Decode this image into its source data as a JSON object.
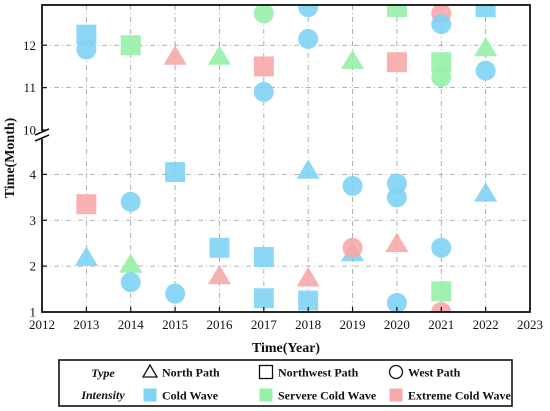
{
  "chart_data": {
    "type": "scatter",
    "title": "",
    "xlabel": "Time(Year)",
    "ylabel": "Time(Month)",
    "x_range": [
      2012,
      2023
    ],
    "x_ticks": [
      "2012",
      "2013",
      "2014",
      "2015",
      "2016",
      "2017",
      "2018",
      "2019",
      "2020",
      "2021",
      "2022",
      "2023"
    ],
    "y_lower_range": [
      1,
      4.75
    ],
    "y_upper_range": [
      10,
      12.95
    ],
    "y_ticks_lower": [
      "1",
      "2",
      "3",
      "4"
    ],
    "y_ticks_upper": [
      "10",
      "11",
      "12"
    ],
    "axis_break": "between 4.75 and 10",
    "grid": true,
    "legend": {
      "placement": "bottom",
      "type_header": "Type",
      "intensity_header": "Intensity",
      "types": [
        {
          "key": "triangle",
          "label": "North Path"
        },
        {
          "key": "square",
          "label": "Northwest Path"
        },
        {
          "key": "circle",
          "label": "West Path"
        }
      ],
      "intensities": [
        {
          "key": "cold",
          "label": "Cold Wave",
          "color": "#7fd3f4"
        },
        {
          "key": "severe",
          "label": "Servere Cold Wave",
          "color": "#97f0a8"
        },
        {
          "key": "extreme",
          "label": "Extreme Cold Wave",
          "color": "#f7a9a9"
        }
      ]
    },
    "points": [
      {
        "x": 2013,
        "y": 12.25,
        "type": "square",
        "intensity": "cold"
      },
      {
        "x": 2013,
        "y": 11.9,
        "type": "circle",
        "intensity": "cold"
      },
      {
        "x": 2013,
        "y": 3.35,
        "type": "square",
        "intensity": "extreme"
      },
      {
        "x": 2013,
        "y": 2.2,
        "type": "triangle",
        "intensity": "cold"
      },
      {
        "x": 2014,
        "y": 12.0,
        "type": "square",
        "intensity": "severe"
      },
      {
        "x": 2014,
        "y": 3.4,
        "type": "circle",
        "intensity": "cold"
      },
      {
        "x": 2014,
        "y": 2.05,
        "type": "triangle",
        "intensity": "severe"
      },
      {
        "x": 2014,
        "y": 1.65,
        "type": "circle",
        "intensity": "cold"
      },
      {
        "x": 2015,
        "y": 11.75,
        "type": "triangle",
        "intensity": "extreme"
      },
      {
        "x": 2015,
        "y": 4.05,
        "type": "square",
        "intensity": "cold"
      },
      {
        "x": 2015,
        "y": 1.4,
        "type": "circle",
        "intensity": "cold"
      },
      {
        "x": 2016,
        "y": 11.75,
        "type": "triangle",
        "intensity": "severe"
      },
      {
        "x": 2016,
        "y": 2.4,
        "type": "square",
        "intensity": "cold"
      },
      {
        "x": 2016,
        "y": 1.8,
        "type": "triangle",
        "intensity": "extreme"
      },
      {
        "x": 2017,
        "y": 12.75,
        "type": "circle",
        "intensity": "severe"
      },
      {
        "x": 2017,
        "y": 11.5,
        "type": "square",
        "intensity": "extreme"
      },
      {
        "x": 2017,
        "y": 10.9,
        "type": "circle",
        "intensity": "cold"
      },
      {
        "x": 2017,
        "y": 2.2,
        "type": "square",
        "intensity": "cold"
      },
      {
        "x": 2017,
        "y": 1.3,
        "type": "square",
        "intensity": "cold"
      },
      {
        "x": 2018,
        "y": 12.9,
        "type": "circle",
        "intensity": "cold"
      },
      {
        "x": 2018,
        "y": 12.15,
        "type": "circle",
        "intensity": "cold"
      },
      {
        "x": 2018,
        "y": 4.1,
        "type": "triangle",
        "intensity": "cold"
      },
      {
        "x": 2018,
        "y": 1.75,
        "type": "triangle",
        "intensity": "extreme"
      },
      {
        "x": 2018,
        "y": 1.25,
        "type": "square",
        "intensity": "cold"
      },
      {
        "x": 2019,
        "y": 11.65,
        "type": "triangle",
        "intensity": "severe"
      },
      {
        "x": 2019,
        "y": 3.75,
        "type": "circle",
        "intensity": "cold"
      },
      {
        "x": 2019,
        "y": 2.3,
        "type": "triangle",
        "intensity": "cold"
      },
      {
        "x": 2019,
        "y": 2.4,
        "type": "circle",
        "intensity": "extreme"
      },
      {
        "x": 2020,
        "y": 12.9,
        "type": "square",
        "intensity": "severe"
      },
      {
        "x": 2020,
        "y": 11.6,
        "type": "square",
        "intensity": "extreme"
      },
      {
        "x": 2020,
        "y": 3.8,
        "type": "circle",
        "intensity": "cold"
      },
      {
        "x": 2020,
        "y": 3.5,
        "type": "circle",
        "intensity": "cold"
      },
      {
        "x": 2020,
        "y": 2.5,
        "type": "triangle",
        "intensity": "extreme"
      },
      {
        "x": 2020,
        "y": 1.2,
        "type": "circle",
        "intensity": "cold"
      },
      {
        "x": 2021,
        "y": 12.75,
        "type": "circle",
        "intensity": "extreme"
      },
      {
        "x": 2021,
        "y": 12.5,
        "type": "circle",
        "intensity": "cold"
      },
      {
        "x": 2021,
        "y": 11.6,
        "type": "square",
        "intensity": "severe"
      },
      {
        "x": 2021,
        "y": 11.25,
        "type": "circle",
        "intensity": "severe"
      },
      {
        "x": 2021,
        "y": 2.4,
        "type": "circle",
        "intensity": "cold"
      },
      {
        "x": 2021,
        "y": 1.45,
        "type": "square",
        "intensity": "severe"
      },
      {
        "x": 2021,
        "y": 1.0,
        "type": "circle",
        "intensity": "extreme"
      },
      {
        "x": 2022,
        "y": 12.9,
        "type": "square",
        "intensity": "cold"
      },
      {
        "x": 2022,
        "y": 11.4,
        "type": "circle",
        "intensity": "cold"
      },
      {
        "x": 2022,
        "y": 11.95,
        "type": "triangle",
        "intensity": "severe"
      },
      {
        "x": 2022,
        "y": 3.6,
        "type": "triangle",
        "intensity": "cold"
      }
    ]
  }
}
